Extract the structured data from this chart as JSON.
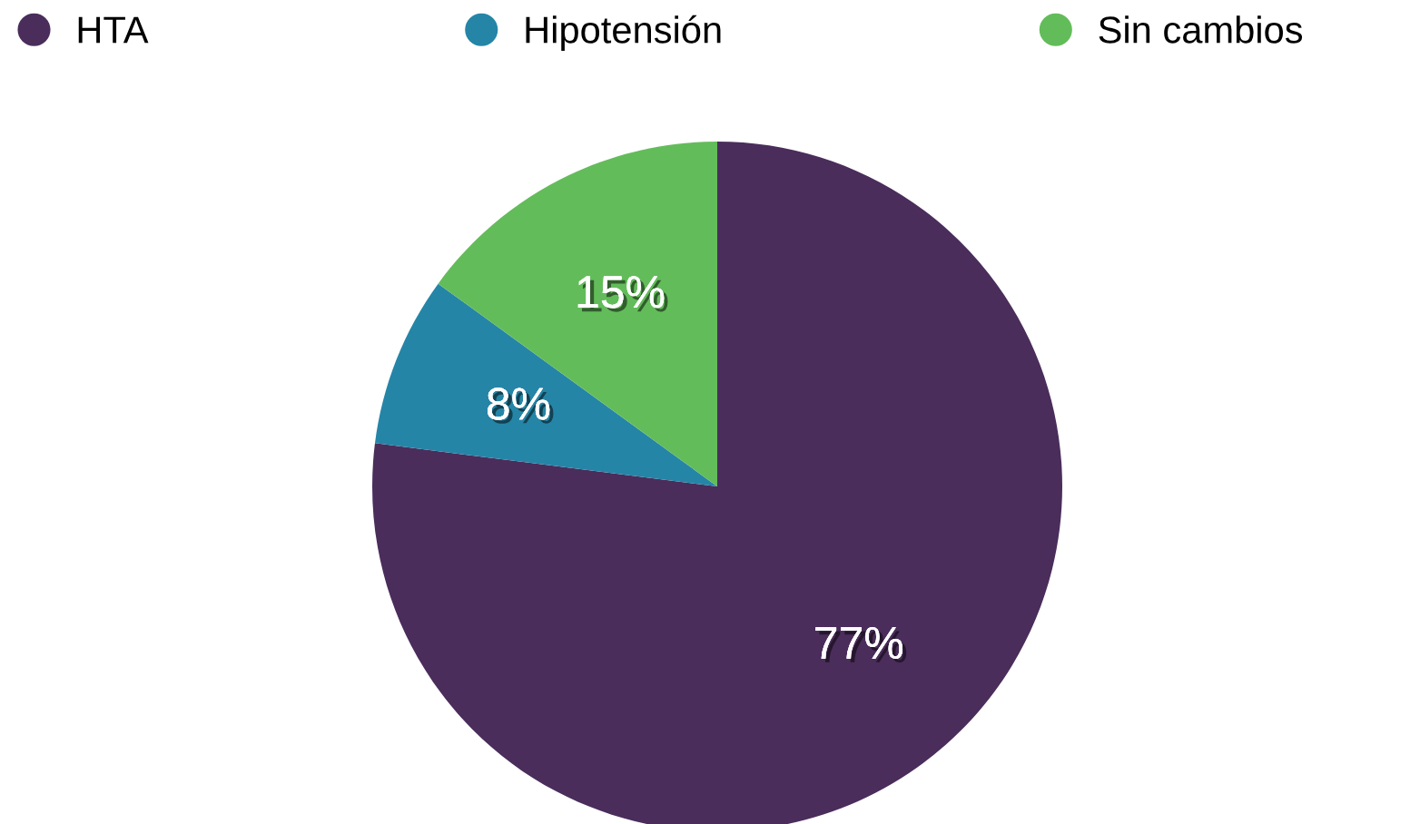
{
  "chart_data": {
    "type": "pie",
    "categories": [
      "HTA",
      "Hipotensión",
      "Sin cambios"
    ],
    "values": [
      77,
      8,
      15
    ],
    "colors": [
      "#4a2d5b",
      "#2585a7",
      "#63bc5a"
    ],
    "value_labels": [
      "77%",
      "8%",
      "15%"
    ],
    "legend": "top"
  }
}
